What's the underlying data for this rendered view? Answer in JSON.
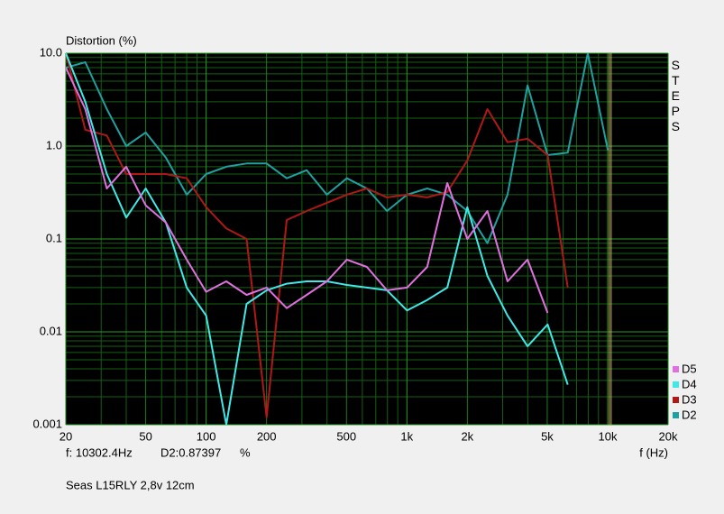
{
  "chart_data": {
    "type": "line",
    "y_label": "Distortion (%)",
    "x_label": "f (Hz)",
    "side_label": "STEPS",
    "subtitle": "Seas L15RLY 2,8v 12cm",
    "cursor": {
      "value": 10302.4,
      "label": "f: 10302.4Hz"
    },
    "readout": "D2:0.87397",
    "readout_unit": "%",
    "xscale": "log",
    "yscale": "log",
    "grid": true,
    "legend": "right",
    "xlim": [
      20,
      20000
    ],
    "ylim": [
      0.001,
      10
    ],
    "xticks": [
      20,
      50,
      100,
      200,
      500,
      {
        "value": 1000,
        "label": "1k"
      },
      {
        "value": 2000,
        "label": "2k"
      },
      {
        "value": 5000,
        "label": "5k"
      },
      {
        "value": 10000,
        "label": "10k"
      },
      {
        "value": 20000,
        "label": "20k"
      }
    ],
    "xminorticks": [
      30,
      40,
      60,
      70,
      80,
      90,
      300,
      400,
      600,
      700,
      800,
      900,
      3000,
      4000,
      6000,
      7000,
      8000,
      9000
    ],
    "yticks": [
      {
        "value": 10,
        "label": "10.0"
      },
      {
        "value": 1,
        "label": "1.0"
      },
      0.1,
      0.01,
      0.001
    ],
    "yminorticks": [
      0.002,
      0.003,
      0.004,
      0.005,
      0.006,
      0.007,
      0.008,
      0.009,
      0.02,
      0.03,
      0.04,
      0.05,
      0.06,
      0.07,
      0.08,
      0.09,
      0.2,
      0.3,
      0.4,
      0.5,
      0.6,
      0.7,
      0.8,
      0.9,
      2,
      3,
      4,
      5,
      6,
      7,
      8,
      9
    ],
    "x": [
      20,
      25,
      32,
      40,
      50,
      63,
      80,
      100,
      126,
      159,
      200,
      252,
      317,
      399,
      502,
      632,
      796,
      1002,
      1262,
      1589,
      2000,
      2518,
      3170,
      3991,
      5024,
      6325,
      7962,
      10024
    ],
    "series": [
      {
        "name": "D5",
        "color": "#e070e0",
        "values": [
          7,
          2.5,
          0.35,
          0.6,
          0.23,
          0.15,
          0.06,
          0.027,
          0.035,
          0.025,
          0.03,
          0.018,
          0.025,
          0.035,
          0.06,
          0.05,
          0.028,
          0.03,
          0.05,
          0.4,
          0.1,
          0.2,
          0.035,
          0.06,
          0.016,
          null,
          null,
          null
        ]
      },
      {
        "name": "D4",
        "color": "#40e8e8",
        "values": [
          10,
          3,
          0.5,
          0.17,
          0.35,
          0.15,
          0.03,
          0.015,
          0.001,
          0.02,
          0.028,
          0.033,
          0.035,
          0.035,
          0.032,
          0.03,
          0.028,
          0.017,
          0.022,
          0.03,
          0.22,
          0.04,
          0.015,
          0.007,
          0.012,
          0.0027,
          null,
          null
        ]
      },
      {
        "name": "D3",
        "color": "#b01818",
        "values": [
          10,
          1.5,
          1.3,
          0.5,
          0.5,
          0.5,
          0.45,
          0.22,
          0.13,
          0.1,
          0.0012,
          0.16,
          0.2,
          0.245,
          0.3,
          0.35,
          0.28,
          0.3,
          0.28,
          0.32,
          0.7,
          2.5,
          1.1,
          1.2,
          0.8,
          0.03,
          null,
          null
        ]
      },
      {
        "name": "D2",
        "color": "#20a0a0",
        "values": [
          7,
          8,
          2.5,
          1,
          1.4,
          0.75,
          0.3,
          0.5,
          0.6,
          0.65,
          0.65,
          0.45,
          0.55,
          0.3,
          0.45,
          0.35,
          0.2,
          0.3,
          0.35,
          0.3,
          0.2,
          0.09,
          0.3,
          4.5,
          0.8,
          0.85,
          10,
          0.9
        ]
      }
    ]
  }
}
